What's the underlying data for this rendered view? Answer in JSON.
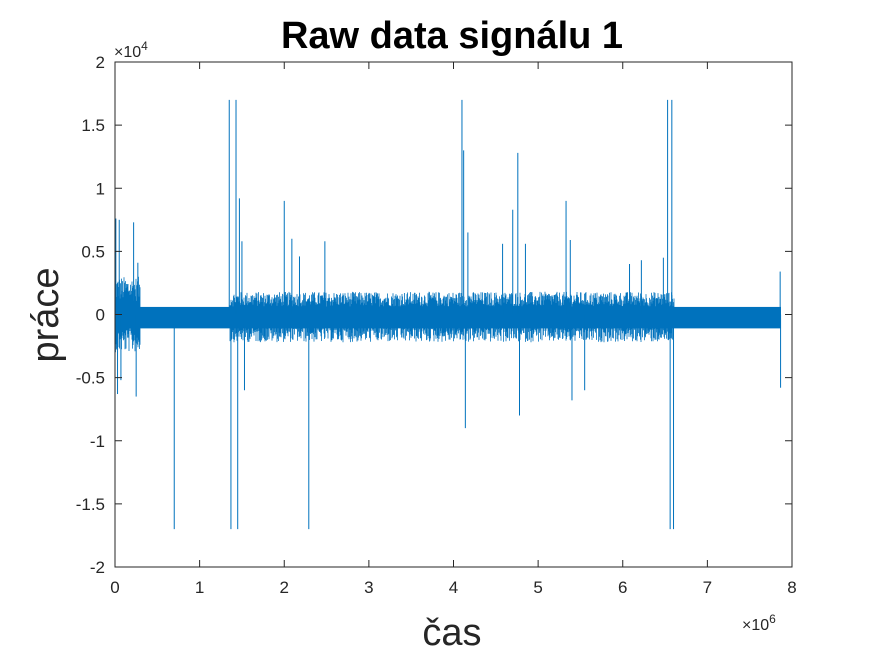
{
  "chart_data": {
    "type": "line",
    "title": "Raw data signálu 1",
    "xlabel": "čas",
    "ylabel": "práce",
    "xlim": [
      0,
      8000000
    ],
    "ylim": [
      -20000,
      20000
    ],
    "x_exponent_label": "×10",
    "x_exponent_power": "6",
    "y_exponent_label": "×10",
    "y_exponent_power": "4",
    "x_ticks": [
      0,
      1,
      2,
      3,
      4,
      5,
      6,
      7,
      8
    ],
    "x_tick_labels": [
      "0",
      "1",
      "2",
      "3",
      "4",
      "5",
      "6",
      "7",
      "8"
    ],
    "y_ticks": [
      -2,
      -1.5,
      -1,
      -0.5,
      0,
      0.5,
      1,
      1.5,
      2
    ],
    "y_tick_labels": [
      "-2",
      "-1.5",
      "-1",
      "-0.5",
      "0",
      "0.5",
      "1",
      "1.5",
      "2"
    ],
    "series_color": "#0072BD",
    "x_end": 7870000,
    "baseline_band": [
      -1100,
      600
    ],
    "active_segments": [
      {
        "x": [
          0,
          290000
        ],
        "upper": 3000,
        "lower": -3000
      },
      {
        "x": [
          1360000,
          6600000
        ],
        "upper": 1800,
        "lower": -2200
      }
    ],
    "spikes": [
      {
        "x": 10000,
        "y": 7600
      },
      {
        "x": 30000,
        "y": -6300
      },
      {
        "x": 50000,
        "y": 7500
      },
      {
        "x": 70000,
        "y": -5200
      },
      {
        "x": 220000,
        "y": 7300
      },
      {
        "x": 250000,
        "y": -6500
      },
      {
        "x": 270000,
        "y": 4100
      },
      {
        "x": 700000,
        "y": -17000
      },
      {
        "x": 1350000,
        "y": 17000
      },
      {
        "x": 1370000,
        "y": -17000
      },
      {
        "x": 1430000,
        "y": 17000
      },
      {
        "x": 1450000,
        "y": -17000
      },
      {
        "x": 1470000,
        "y": 9200
      },
      {
        "x": 1500000,
        "y": 5800
      },
      {
        "x": 1530000,
        "y": -6000
      },
      {
        "x": 2000000,
        "y": 9000
      },
      {
        "x": 2090000,
        "y": 6000
      },
      {
        "x": 2180000,
        "y": 4600
      },
      {
        "x": 2290000,
        "y": -17000
      },
      {
        "x": 2480000,
        "y": 5800
      },
      {
        "x": 4100000,
        "y": 17000
      },
      {
        "x": 4120000,
        "y": 13000
      },
      {
        "x": 4140000,
        "y": -9000
      },
      {
        "x": 4170000,
        "y": 6500
      },
      {
        "x": 4580000,
        "y": 5600
      },
      {
        "x": 4700000,
        "y": 8300
      },
      {
        "x": 4760000,
        "y": 12800
      },
      {
        "x": 4780000,
        "y": -8000
      },
      {
        "x": 4850000,
        "y": 5600
      },
      {
        "x": 5330000,
        "y": 9000
      },
      {
        "x": 5380000,
        "y": 5900
      },
      {
        "x": 5400000,
        "y": -6800
      },
      {
        "x": 5550000,
        "y": -6000
      },
      {
        "x": 6080000,
        "y": 4000
      },
      {
        "x": 6220000,
        "y": 4300
      },
      {
        "x": 6480000,
        "y": 4500
      },
      {
        "x": 6530000,
        "y": 17000
      },
      {
        "x": 6560000,
        "y": -17000
      },
      {
        "x": 6580000,
        "y": 17000
      },
      {
        "x": 6600000,
        "y": -17000
      },
      {
        "x": 7860000,
        "y": 3400
      },
      {
        "x": 7865000,
        "y": -5800
      }
    ]
  }
}
